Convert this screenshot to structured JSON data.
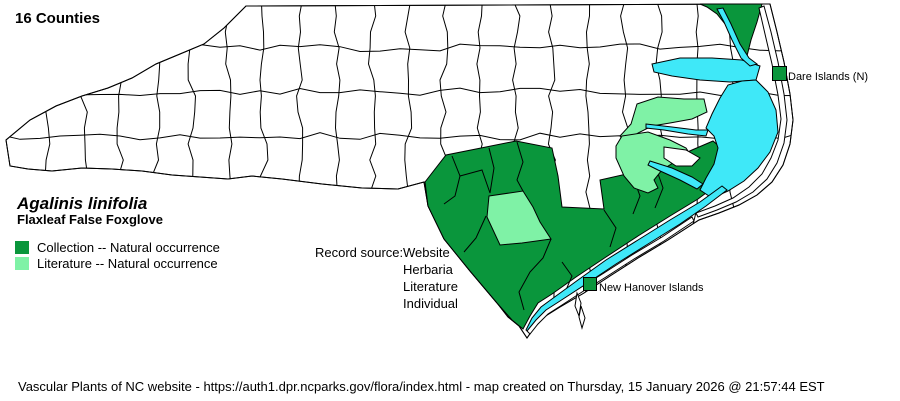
{
  "header": {
    "title": "16 Counties"
  },
  "species": {
    "scientific_name": "Agalinis linifolia",
    "common_name": "Flaxleaf False Foxglove"
  },
  "legend": {
    "items": [
      {
        "label": "Collection -- Natural occurrence",
        "color": "#0a963c"
      },
      {
        "label": "Literature -- Natural occurrence",
        "color": "#7ff2a6"
      }
    ]
  },
  "record_source": {
    "label": "Record source:",
    "values": [
      "Website",
      "Herbaria",
      "Literature",
      "Individual"
    ]
  },
  "map": {
    "island_markers": [
      {
        "label": "Dare Islands (N)",
        "color": "#0a963c"
      },
      {
        "label": "New Hanover Islands",
        "color": "#0a963c"
      }
    ],
    "colors": {
      "collection": "#0a963c",
      "literature": "#7ff2a6",
      "water": "#3fe8f8",
      "county": "#ffffff",
      "border": "#000000"
    }
  },
  "footer": {
    "text": "Vascular Plants of NC website - https://auth1.dpr.ncparks.gov/flora/index.html - map created on Thursday, 15 January 2026 @ 21:57:44 EST"
  }
}
